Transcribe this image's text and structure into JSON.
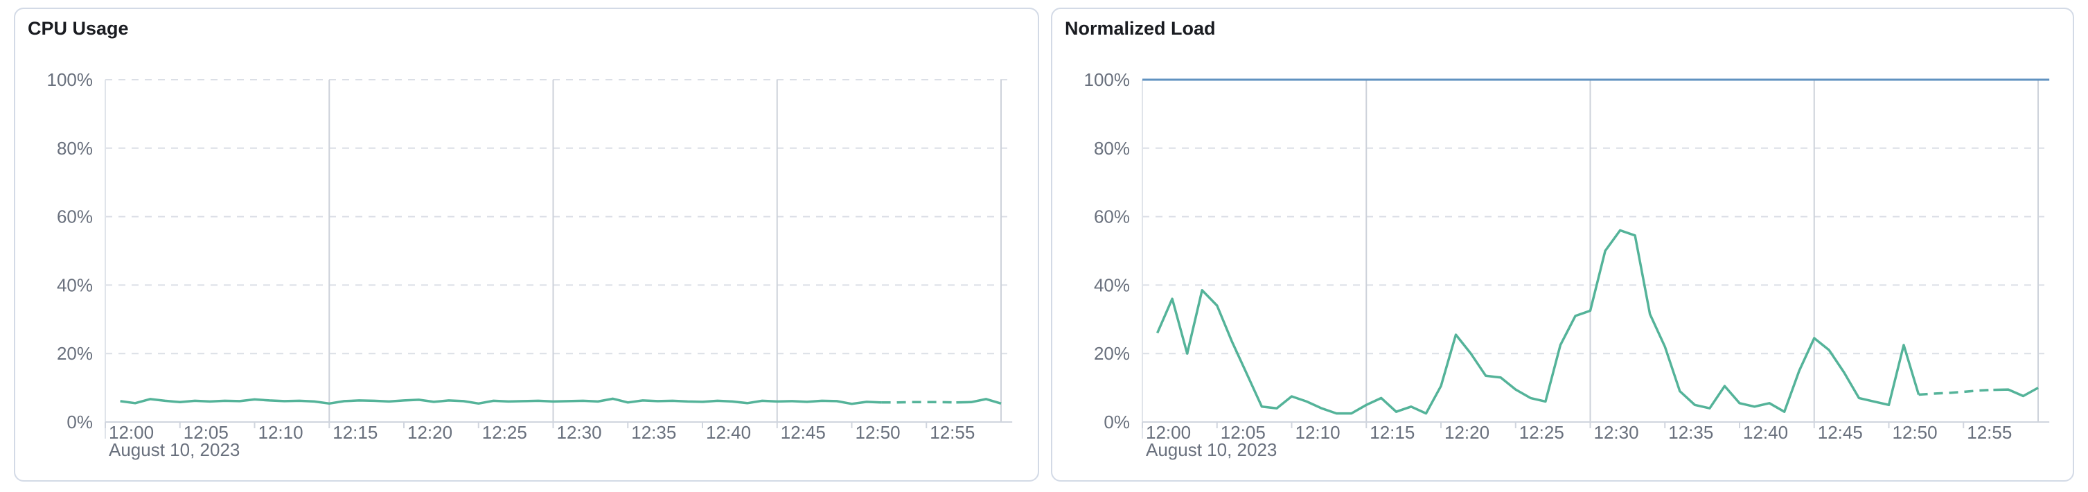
{
  "colors": {
    "background": "#ffffff",
    "panel_border": "#d3dae6",
    "title_text": "#1a1c21",
    "axis_label_text": "#69707d",
    "grid_dashed": "#dbdfe6",
    "grid_solid": "#cdd2da",
    "axis_line": "#d0d5de",
    "y_axis_line": "#e0e4ea",
    "series_green": "#54b399",
    "threshold_blue": "#6092c0"
  },
  "chart_data": [
    {
      "type": "line",
      "title": "CPU Usage",
      "unit": "%",
      "ylim": [
        0,
        100
      ],
      "y_tick_labels": [
        "0%",
        "20%",
        "40%",
        "60%",
        "80%",
        "100%"
      ],
      "y_grid_values": [
        20,
        40,
        60,
        80,
        100
      ],
      "x_start_label": "12:00",
      "x_tick_labels": [
        "12:00",
        "12:05",
        "12:10",
        "12:15",
        "12:20",
        "12:25",
        "12:30",
        "12:35",
        "12:40",
        "12:45",
        "12:50",
        "12:55"
      ],
      "x_date_label": "August 10, 2023",
      "x_major_gridline_minutes": [
        15,
        30,
        45,
        60
      ],
      "threshold_line": null,
      "series": [
        {
          "name": "cpu-usage",
          "color": "#54b399",
          "minutes": [
            1,
            2,
            3,
            4,
            5,
            6,
            7,
            8,
            9,
            10,
            11,
            12,
            13,
            14,
            15,
            16,
            17,
            18,
            19,
            20,
            21,
            22,
            23,
            24,
            25,
            26,
            27,
            28,
            29,
            30,
            31,
            32,
            33,
            34,
            35,
            36,
            37,
            38,
            39,
            40,
            41,
            42,
            43,
            44,
            45,
            46,
            47,
            48,
            49,
            50,
            51,
            52,
            53,
            54,
            55,
            56,
            57,
            58,
            59,
            60
          ],
          "values": [
            6.1,
            5.5,
            6.7,
            6.2,
            5.8,
            6.2,
            6.0,
            6.2,
            6.1,
            6.6,
            6.3,
            6.1,
            6.2,
            6.0,
            5.4,
            6.1,
            6.3,
            6.2,
            6.0,
            6.3,
            6.5,
            5.9,
            6.3,
            6.1,
            5.4,
            6.2,
            6.0,
            6.1,
            6.2,
            6.0,
            6.1,
            6.2,
            6.0,
            6.8,
            5.7,
            6.3,
            6.1,
            6.2,
            6.0,
            5.9,
            6.2,
            6.0,
            5.5,
            6.2,
            6.0,
            6.1,
            5.9,
            6.2,
            6.1,
            5.3,
            5.9,
            5.7,
            5.7,
            5.8,
            5.8,
            5.8,
            5.7,
            5.8,
            6.7,
            5.4
          ],
          "segments": [
            {
              "from_min": 1,
              "to_min": 52,
              "dashed": false
            },
            {
              "from_min": 52,
              "to_min": 57,
              "dashed": true
            },
            {
              "from_min": 57,
              "to_min": 60,
              "dashed": false
            }
          ]
        }
      ]
    },
    {
      "type": "line",
      "title": "Normalized Load",
      "unit": "%",
      "ylim": [
        0,
        100
      ],
      "y_tick_labels": [
        "0%",
        "20%",
        "40%",
        "60%",
        "80%",
        "100%"
      ],
      "y_grid_values": [
        20,
        40,
        60,
        80
      ],
      "x_start_label": "12:00",
      "x_tick_labels": [
        "12:00",
        "12:05",
        "12:10",
        "12:15",
        "12:20",
        "12:25",
        "12:30",
        "12:35",
        "12:40",
        "12:45",
        "12:50",
        "12:55"
      ],
      "x_date_label": "August 10, 2023",
      "x_major_gridline_minutes": [
        15,
        30,
        45,
        60
      ],
      "threshold_line": {
        "value": 100,
        "color": "#6092c0"
      },
      "series": [
        {
          "name": "normalized-load",
          "color": "#54b399",
          "minutes": [
            1,
            2,
            3,
            4,
            5,
            6,
            7,
            8,
            9,
            10,
            11,
            12,
            13,
            14,
            15,
            16,
            17,
            18,
            19,
            20,
            21,
            22,
            23,
            24,
            25,
            26,
            27,
            28,
            29,
            30,
            31,
            32,
            33,
            34,
            35,
            36,
            37,
            38,
            39,
            40,
            41,
            42,
            43,
            44,
            45,
            46,
            47,
            48,
            49,
            50,
            51,
            52,
            53,
            54,
            55,
            56,
            57,
            58,
            59,
            60
          ],
          "values": [
            26,
            36,
            20,
            38.5,
            34,
            23.5,
            14,
            4.5,
            4,
            7.5,
            6,
            4,
            2.5,
            2.5,
            5,
            7,
            3,
            4.5,
            2.5,
            10.5,
            25.5,
            20,
            13.5,
            13,
            9.5,
            7,
            6,
            22.5,
            31,
            32.5,
            50,
            56,
            54.5,
            31.5,
            22,
            9,
            5,
            4,
            10.5,
            5.5,
            4.5,
            5.5,
            3,
            15,
            24.5,
            21,
            14.5,
            7,
            6,
            5,
            22.5,
            8,
            8.3,
            8.5,
            8.8,
            9.2,
            9.4,
            9.5,
            7.6,
            10
          ],
          "segments": [
            {
              "from_min": 1,
              "to_min": 52,
              "dashed": false
            },
            {
              "from_min": 52,
              "to_min": 57,
              "dashed": true
            },
            {
              "from_min": 57,
              "to_min": 60,
              "dashed": false
            }
          ]
        }
      ]
    }
  ]
}
